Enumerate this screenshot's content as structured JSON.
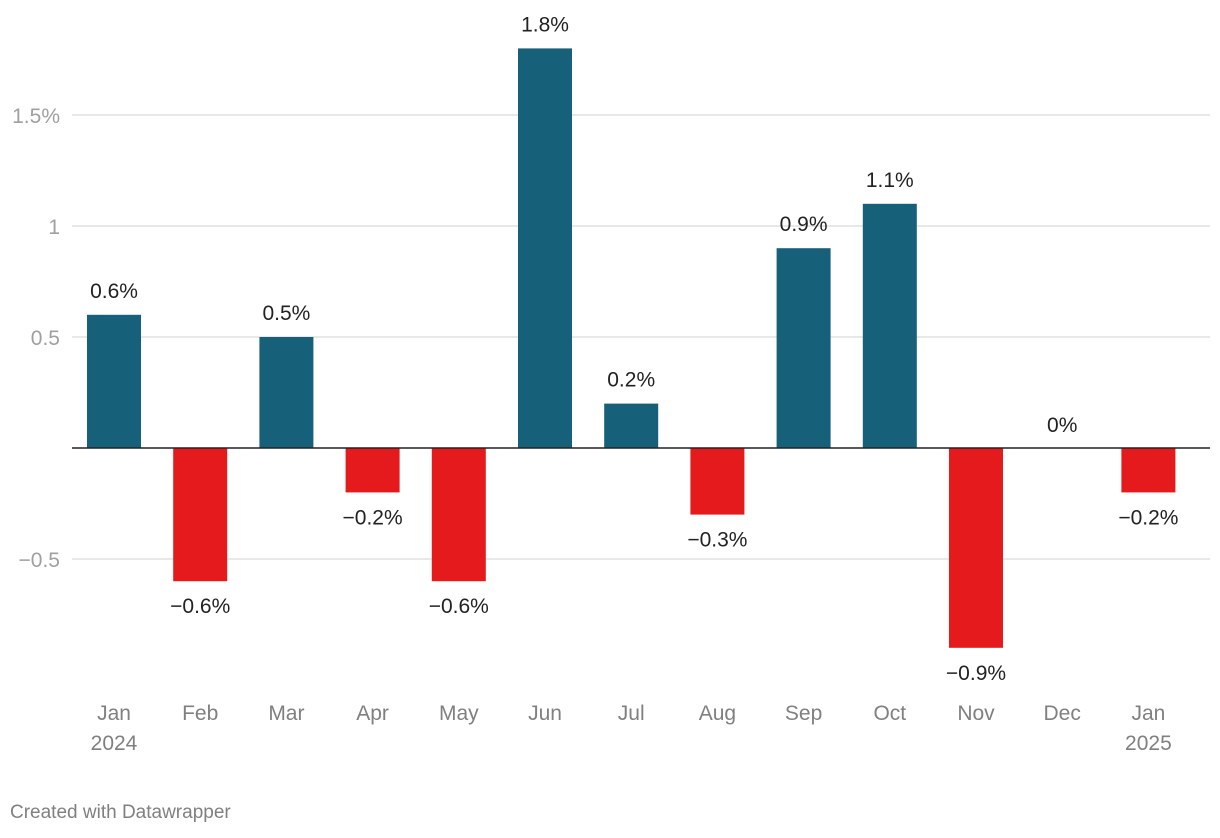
{
  "chart_data": {
    "type": "bar",
    "title": "",
    "xlabel": "",
    "ylabel": "",
    "ylim": [
      -1.05,
      1.95
    ],
    "grid": true,
    "y_ticks": [
      {
        "value": 1.5,
        "label": "1.5%"
      },
      {
        "value": 1,
        "label": "1"
      },
      {
        "value": 0.5,
        "label": "0.5"
      },
      {
        "value": -0.5,
        "label": "−0.5"
      }
    ],
    "categories": [
      {
        "month": "Jan",
        "year": "2024"
      },
      {
        "month": "Feb",
        "year": ""
      },
      {
        "month": "Mar",
        "year": ""
      },
      {
        "month": "Apr",
        "year": ""
      },
      {
        "month": "May",
        "year": ""
      },
      {
        "month": "Jun",
        "year": ""
      },
      {
        "month": "Jul",
        "year": ""
      },
      {
        "month": "Aug",
        "year": ""
      },
      {
        "month": "Sep",
        "year": ""
      },
      {
        "month": "Oct",
        "year": ""
      },
      {
        "month": "Nov",
        "year": ""
      },
      {
        "month": "Dec",
        "year": ""
      },
      {
        "month": "Jan",
        "year": "2025"
      }
    ],
    "values": [
      0.6,
      -0.6,
      0.5,
      -0.2,
      -0.6,
      1.8,
      0.2,
      -0.3,
      0.9,
      1.1,
      -0.9,
      0,
      -0.2
    ],
    "value_labels": [
      "0.6%",
      "−0.6%",
      "0.5%",
      "−0.2%",
      "−0.6%",
      "1.8%",
      "0.2%",
      "−0.3%",
      "0.9%",
      "1.1%",
      "−0.9%",
      "0%",
      "−0.2%"
    ],
    "colors": {
      "positive": "#176079",
      "negative": "#e41a1c"
    }
  },
  "footer": {
    "credit": "Created with Datawrapper"
  }
}
